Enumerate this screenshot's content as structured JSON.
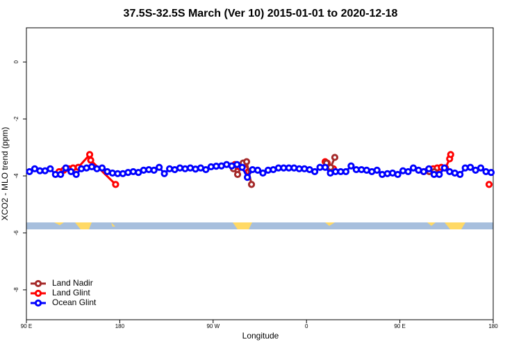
{
  "chart_data": {
    "type": "line",
    "title": "37.5S-32.5S March (Ver 10)   2015-01-01 to 2020-12-18",
    "x_label": "Longitude",
    "y_label": "XCO2 - MLO trend (ppm)",
    "xlim": [
      90,
      540
    ],
    "ylim": [
      -9.05,
      1.2
    ],
    "xticks": [
      {
        "value": 90,
        "label": "90 E"
      },
      180,
      {
        "value": 270,
        "label": "90 W"
      },
      {
        "value": 360,
        "label": "0"
      },
      {
        "value": 450,
        "label": "90 E"
      },
      {
        "value": 540,
        "label": "180"
      }
    ],
    "yticks": [
      0,
      -2,
      -4,
      -6,
      -8
    ],
    "legend": "bottom-left",
    "series": [
      {
        "name": "Land Nadir",
        "color": "#a52a2a",
        "x": [
          289.6,
          293.6,
          298.9,
          302.3,
          307,
          null,
          379.3,
          383.3,
          387.3,
          null,
          478.4,
          483.1
        ],
        "values": [
          -3.75,
          -3.95,
          -3.55,
          -3.5,
          -4.3,
          null,
          -3.55,
          -3.7,
          -3.35,
          null,
          -3.85,
          -3.85
        ]
      },
      {
        "name": "Land Glint",
        "color": "#ff0000",
        "x": [
          121.5,
          126,
          131,
          135,
          140,
          151,
          152,
          176,
          null,
          291,
          295,
          299,
          301,
          304,
          null,
          378,
          380,
          386,
          null,
          473,
          477,
          482,
          486,
          490,
          494,
          498,
          499,
          null,
          536
        ],
        "values": [
          -3.85,
          -3.8,
          -3.75,
          -3.72,
          -3.7,
          -3.25,
          -3.45,
          -4.3,
          null,
          -3.6,
          -3.68,
          -3.62,
          -3.75,
          -3.85,
          null,
          -3.5,
          -3.55,
          -3.75,
          null,
          -3.85,
          -3.8,
          -3.75,
          -3.72,
          -3.7,
          -3.72,
          -3.4,
          -3.25,
          null,
          -4.3
        ]
      },
      {
        "name": "Ocean Glint",
        "color": "#0000ff",
        "x": [
          93,
          98,
          103,
          108,
          113,
          118,
          123,
          128,
          133,
          138,
          143,
          148,
          153,
          158,
          163,
          168,
          173,
          178,
          183,
          188,
          193,
          198,
          203,
          208,
          213,
          218,
          223,
          228,
          233,
          238,
          243,
          248,
          253,
          258,
          263,
          268,
          273,
          278,
          283,
          288,
          293,
          298,
          303,
          308,
          313,
          318,
          323,
          328,
          333,
          338,
          343,
          348,
          353,
          358,
          363,
          368,
          373,
          378,
          383,
          388,
          393,
          398,
          403,
          408,
          413,
          418,
          423,
          428,
          433,
          438,
          443,
          448,
          453,
          458,
          463,
          468,
          473,
          478,
          483,
          488,
          493,
          498,
          503,
          508,
          513,
          518,
          523,
          528,
          533,
          538
        ],
        "values": [
          -3.85,
          -3.75,
          -3.82,
          -3.82,
          -3.75,
          -3.95,
          -3.95,
          -3.72,
          -3.85,
          -3.95,
          -3.75,
          -3.72,
          -3.68,
          -3.75,
          -3.72,
          -3.85,
          -3.9,
          -3.92,
          -3.92,
          -3.88,
          -3.85,
          -3.88,
          -3.8,
          -3.78,
          -3.8,
          -3.7,
          -3.92,
          -3.75,
          -3.78,
          -3.72,
          -3.75,
          -3.72,
          -3.76,
          -3.72,
          -3.78,
          -3.68,
          -3.66,
          -3.65,
          -3.6,
          -3.65,
          -3.6,
          -3.7,
          -4.05,
          -3.78,
          -3.8,
          -3.9,
          -3.8,
          -3.78,
          -3.72,
          -3.72,
          -3.72,
          -3.72,
          -3.75,
          -3.75,
          -3.78,
          -3.85,
          -3.7,
          -3.7,
          -3.9,
          -3.85,
          -3.85,
          -3.85,
          -3.65,
          -3.78,
          -3.78,
          -3.8,
          -3.85,
          -3.8,
          -3.95,
          -3.92,
          -3.9,
          -3.95,
          -3.82,
          -3.85,
          -3.72,
          -3.8,
          -3.85,
          -3.75,
          -3.95,
          -3.95,
          -3.72,
          -3.85,
          -3.9,
          -3.95,
          -3.72,
          -3.7,
          -3.8,
          -3.72,
          -3.85,
          -3.88
        ]
      }
    ]
  }
}
